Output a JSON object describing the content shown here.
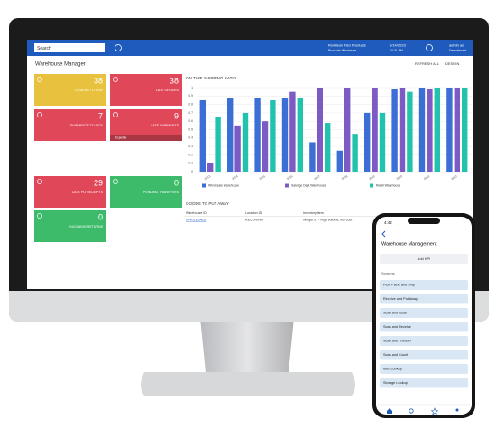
{
  "header": {
    "search": "Search",
    "company": "Rowlison Tien Products",
    "company_sub": "Products Wholesale",
    "date": "6/14/2023",
    "time": "10:21 AM",
    "user": "admin ad",
    "user_sub": "Demotenant"
  },
  "page": {
    "title": "Warehouse Manager",
    "actions": [
      "REFRESH ALL",
      "DESIGN"
    ]
  },
  "tiles": [
    {
      "value": 38,
      "label": "ORDERS TO SHIP",
      "color": "#e8c23f"
    },
    {
      "value": 38,
      "label": "LATE ORDERS",
      "color": "#e0485a"
    },
    {
      "value": 7,
      "label": "SHIPMENTS TO PICK",
      "color": "#e0485a"
    },
    {
      "value": 9,
      "label": "LATE SHIPMENTS",
      "color": "#e0485a",
      "footer": "Expedite"
    },
    {
      "value": 29,
      "label": "LATE PO RECEIPTS",
      "color": "#e0485a"
    },
    {
      "value": 0,
      "label": "PENDING TRANSFERS",
      "color": "#3dbb6a"
    },
    {
      "value": 0,
      "label": "INCOMING RETURNS",
      "color": "#3dbb6a"
    }
  ],
  "chart_data": {
    "type": "bar",
    "title": "ON TIME SHIPPING RATIO",
    "categories": [
      "2013",
      "2014",
      "2015",
      "2016",
      "2017",
      "2018",
      "2019",
      "2020",
      "2021",
      "2022"
    ],
    "series": [
      {
        "name": "Wholesale Warehouse",
        "color": "#3b6fd6",
        "values": [
          0.85,
          0.88,
          0.88,
          0.88,
          0.35,
          0.25,
          0.7,
          0.98,
          1,
          1
        ]
      },
      {
        "name": "Salvage Dept Warehouse",
        "color": "#7c5cc4",
        "values": [
          0.1,
          0.55,
          0.6,
          0.95,
          1,
          1,
          1,
          1,
          0.98,
          1
        ]
      },
      {
        "name": "Retail Warehouse",
        "color": "#22c3ad",
        "values": [
          0.65,
          0.7,
          0.85,
          0.88,
          0.58,
          0.45,
          0.7,
          0.95,
          1,
          1
        ]
      }
    ],
    "ylim": [
      0,
      1
    ],
    "yticks": [
      0,
      0.1,
      0.2,
      0.3,
      0.4,
      0.5,
      0.6,
      0.7,
      0.8,
      0.9,
      1
    ],
    "grid": true,
    "legend": "bottom"
  },
  "table": {
    "title": "GOODS TO PUT AWAY",
    "columns": [
      "Warehouse ID",
      "Location ID",
      "Inventory Item"
    ],
    "rows": [
      [
        "WHOLESALE",
        "RECEIVING",
        "Widget 01 - High volume, low cost"
      ]
    ]
  },
  "phone": {
    "time": "4:42",
    "title": "Warehouse Management",
    "button": "Add KPI",
    "section": "Screens",
    "items": [
      "Pick, Pack, and Ship",
      "Receive and Put Away",
      "Scan and Issue",
      "Scan and Receive",
      "Scan and Transfer",
      "Scan and Count",
      "Item Lookup",
      "Storage Lookup"
    ]
  }
}
